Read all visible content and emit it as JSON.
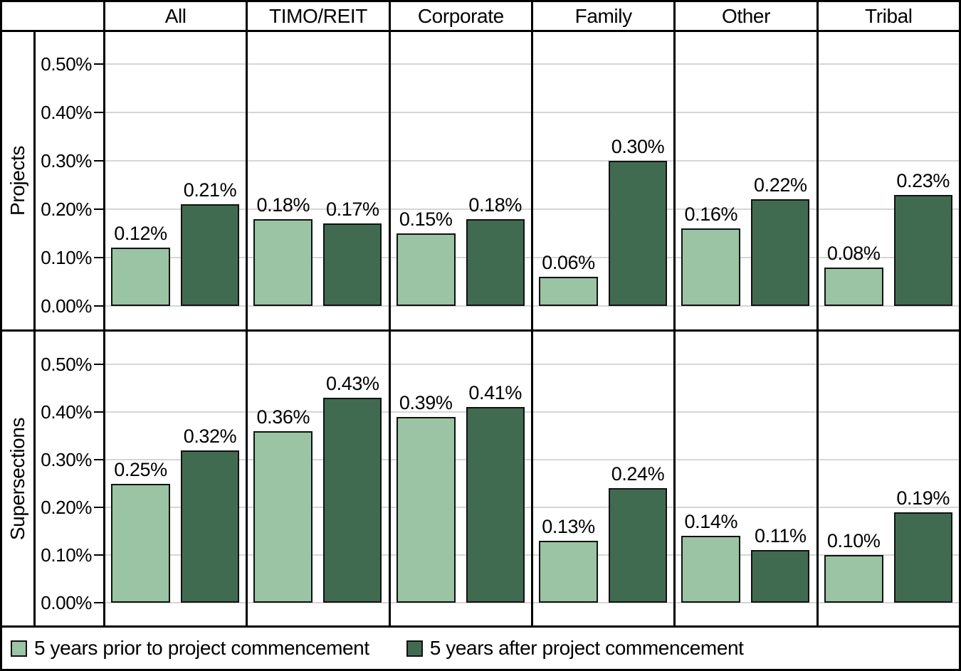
{
  "legend": {
    "items": [
      {
        "label": "5 years prior to project commencement",
        "color": "#9ac4a3"
      },
      {
        "label": "5 years after project commencement",
        "color": "#416b51"
      }
    ],
    "position": "bottom"
  },
  "chart_data": {
    "type": "bar",
    "facets": {
      "columns": [
        "All",
        "TIMO/REIT",
        "Corporate",
        "Family",
        "Other",
        "Tribal"
      ],
      "rows": [
        "Projects",
        "Supersections"
      ]
    },
    "panels": [
      {
        "row": "Projects",
        "series": [
          {
            "name": "5 years prior to project commencement",
            "color": "#9ac4a3",
            "values": [
              0.12,
              0.18,
              0.15,
              0.06,
              0.16,
              0.08
            ]
          },
          {
            "name": "5 years after project commencement",
            "color": "#416b51",
            "values": [
              0.21,
              0.17,
              0.18,
              0.3,
              0.22,
              0.23
            ]
          }
        ]
      },
      {
        "row": "Supersections",
        "series": [
          {
            "name": "5 years prior to project commencement",
            "color": "#9ac4a3",
            "values": [
              0.25,
              0.36,
              0.39,
              0.13,
              0.14,
              0.1
            ]
          },
          {
            "name": "5 years after project commencement",
            "color": "#416b51",
            "values": [
              0.32,
              0.43,
              0.41,
              0.24,
              0.11,
              0.19
            ]
          }
        ]
      }
    ],
    "value_labels": {
      "projects_prior": [
        "0.12%",
        "0.18%",
        "0.15%",
        "0.06%",
        "0.16%",
        "0.08%"
      ],
      "projects_after": [
        "0.21%",
        "0.17%",
        "0.18%",
        "0.30%",
        "0.22%",
        "0.23%"
      ],
      "supersections_prior": [
        "0.25%",
        "0.36%",
        "0.39%",
        "0.13%",
        "0.14%",
        "0.10%"
      ],
      "supersections_after": [
        "0.32%",
        "0.43%",
        "0.41%",
        "0.24%",
        "0.11%",
        "0.19%"
      ]
    },
    "y_ticks": [
      "0.00%",
      "0.10%",
      "0.20%",
      "0.30%",
      "0.40%",
      "0.50%"
    ],
    "ylim_percent": [
      0,
      0.55
    ],
    "grid": true,
    "unit": "%",
    "colors": {
      "prior": "#9ac4a3",
      "after": "#416b51",
      "gridline": "#d6d6d6"
    }
  }
}
